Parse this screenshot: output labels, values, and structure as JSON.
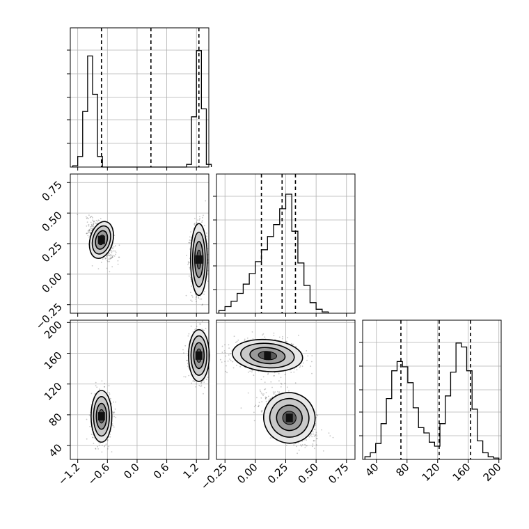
{
  "chart_data": {
    "type": "corner",
    "parameters": [
      {
        "index": 0,
        "range": [
          -1.35,
          1.45
        ],
        "ticks": [
          -1.2,
          -0.6,
          0.0,
          0.6,
          1.2
        ],
        "tick_labels": [
          "−1.2",
          "−0.6",
          "0.0",
          "0.6",
          "1.2"
        ],
        "quantiles": [
          -0.72,
          0.28,
          1.25
        ]
      },
      {
        "index": 1,
        "range": [
          -0.32,
          0.82
        ],
        "ticks": [
          -0.25,
          0.0,
          0.25,
          0.5,
          0.75
        ],
        "tick_labels": [
          "−0.25",
          "0.00",
          "0.25",
          "0.50",
          "0.75"
        ],
        "quantiles": [
          0.05,
          0.22,
          0.33
        ]
      },
      {
        "index": 2,
        "range": [
          22,
          203
        ],
        "ticks": [
          40,
          80,
          120,
          160,
          200
        ],
        "tick_labels": [
          "40",
          "80",
          "120",
          "160",
          "200"
        ],
        "quantiles": [
          72,
          122,
          163
        ]
      }
    ],
    "histograms": [
      {
        "param": 0,
        "bins": [
          [
            -1.3,
            0.01
          ],
          [
            -1.2,
            0.08
          ],
          [
            -1.1,
            0.42
          ],
          [
            -1.0,
            0.84
          ],
          [
            -0.9,
            0.55
          ],
          [
            -0.8,
            0.08
          ],
          [
            -0.7,
            0.0
          ],
          [
            -0.6,
            0.0
          ],
          [
            -0.5,
            0.0
          ],
          [
            -0.4,
            0.0
          ],
          [
            -0.3,
            0.0
          ],
          [
            -0.2,
            0.0
          ],
          [
            -0.1,
            0.0
          ],
          [
            0.0,
            0.0
          ],
          [
            0.1,
            0.0
          ],
          [
            0.2,
            0.0
          ],
          [
            0.3,
            0.0
          ],
          [
            0.4,
            0.0
          ],
          [
            0.5,
            0.0
          ],
          [
            0.6,
            0.0
          ],
          [
            0.7,
            0.0
          ],
          [
            0.8,
            0.0
          ],
          [
            0.9,
            0.0
          ],
          [
            1.0,
            0.02
          ],
          [
            1.1,
            0.38
          ],
          [
            1.2,
            0.88
          ],
          [
            1.3,
            0.44
          ],
          [
            1.4,
            0.02
          ]
        ],
        "bin_width": 0.1,
        "x_from": -1.35
      },
      {
        "param": 1,
        "bins": [
          [
            -0.3,
            0.02
          ],
          [
            -0.25,
            0.05
          ],
          [
            -0.2,
            0.09
          ],
          [
            -0.15,
            0.15
          ],
          [
            -0.1,
            0.22
          ],
          [
            -0.05,
            0.3
          ],
          [
            0.0,
            0.39
          ],
          [
            0.05,
            0.48
          ],
          [
            0.1,
            0.58
          ],
          [
            0.15,
            0.67
          ],
          [
            0.2,
            0.79
          ],
          [
            0.25,
            0.9
          ],
          [
            0.3,
            0.62
          ],
          [
            0.35,
            0.38
          ],
          [
            0.4,
            0.21
          ],
          [
            0.45,
            0.08
          ],
          [
            0.5,
            0.03
          ],
          [
            0.55,
            0.01
          ]
        ],
        "bin_width": 0.05
      },
      {
        "param": 2,
        "bins": [
          [
            25,
            0.02
          ],
          [
            32,
            0.05
          ],
          [
            39,
            0.12
          ],
          [
            46,
            0.27
          ],
          [
            53,
            0.46
          ],
          [
            60,
            0.67
          ],
          [
            67,
            0.74
          ],
          [
            74,
            0.7
          ],
          [
            81,
            0.58
          ],
          [
            88,
            0.39
          ],
          [
            95,
            0.24
          ],
          [
            102,
            0.2
          ],
          [
            109,
            0.13
          ],
          [
            116,
            0.1
          ],
          [
            123,
            0.27
          ],
          [
            130,
            0.48
          ],
          [
            137,
            0.66
          ],
          [
            144,
            0.88
          ],
          [
            151,
            0.85
          ],
          [
            158,
            0.67
          ],
          [
            165,
            0.38
          ],
          [
            172,
            0.14
          ],
          [
            179,
            0.05
          ],
          [
            186,
            0.02
          ],
          [
            193,
            0.01
          ]
        ],
        "bin_width": 7
      }
    ],
    "clusters": [
      {
        "pair": [
          0,
          1
        ],
        "center": [
          -0.72,
          0.28
        ],
        "sd": [
          0.12,
          0.08
        ],
        "rho": -0.55
      },
      {
        "pair": [
          0,
          1
        ],
        "center": [
          1.25,
          0.12
        ],
        "sd": [
          0.08,
          0.14
        ],
        "rho": 0.0
      },
      {
        "pair": [
          0,
          2
        ],
        "center": [
          -0.72,
          78
        ],
        "sd": [
          0.1,
          16
        ],
        "rho": 0.0
      },
      {
        "pair": [
          0,
          2
        ],
        "center": [
          1.25,
          157
        ],
        "sd": [
          0.1,
          16
        ],
        "rho": 0.0
      },
      {
        "pair": [
          1,
          2
        ],
        "center": [
          0.1,
          157
        ],
        "sd": [
          0.14,
          10
        ],
        "rho": -0.1
      },
      {
        "pair": [
          1,
          2
        ],
        "center": [
          0.28,
          76
        ],
        "sd": [
          0.11,
          17
        ],
        "rho": -0.55
      }
    ]
  }
}
